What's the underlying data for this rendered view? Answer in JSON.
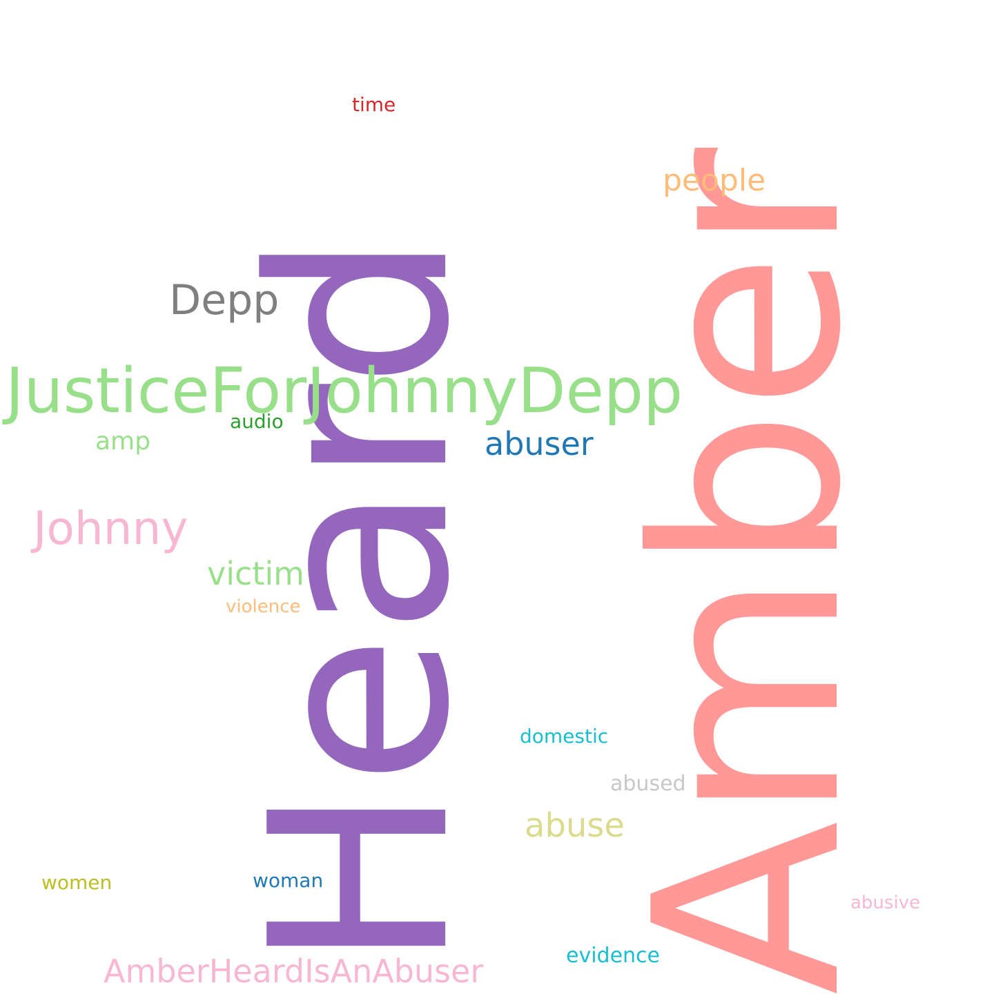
{
  "words": {
    "amber": {
      "text": "Amber",
      "color": "#ff9896"
    },
    "heard": {
      "text": "Heard",
      "color": "#9467bd"
    },
    "justice": {
      "text": "JusticeForJohnnyDepp",
      "color": "#98df8a"
    },
    "depp": {
      "text": "Depp",
      "color": "#7f7f7f"
    },
    "people": {
      "text": "people",
      "color": "#ffbb78"
    },
    "time": {
      "text": "time",
      "color": "#d62728"
    },
    "abuser": {
      "text": "abuser",
      "color": "#1f77b4"
    },
    "amp": {
      "text": "amp",
      "color": "#98df8a"
    },
    "audio": {
      "text": "audio",
      "color": "#2ca02c"
    },
    "johnny": {
      "text": "Johnny",
      "color": "#f7b6d2"
    },
    "victim": {
      "text": "victim",
      "color": "#98df8a"
    },
    "violence": {
      "text": "violence",
      "color": "#ffbb78"
    },
    "domestic": {
      "text": "domestic",
      "color": "#17becf"
    },
    "abused": {
      "text": "abused",
      "color": "#c7c7c7"
    },
    "abuse": {
      "text": "abuse",
      "color": "#dbdb8d"
    },
    "women": {
      "text": "women",
      "color": "#bcbd22"
    },
    "woman": {
      "text": "woman",
      "color": "#1f77b4"
    },
    "abusive": {
      "text": "abusive",
      "color": "#f7b6d2"
    },
    "evidence": {
      "text": "evidence",
      "color": "#17becf"
    },
    "amberheardisanabuser": {
      "text": "AmberHeardIsAnAbuser",
      "color": "#f7b6d2"
    }
  }
}
